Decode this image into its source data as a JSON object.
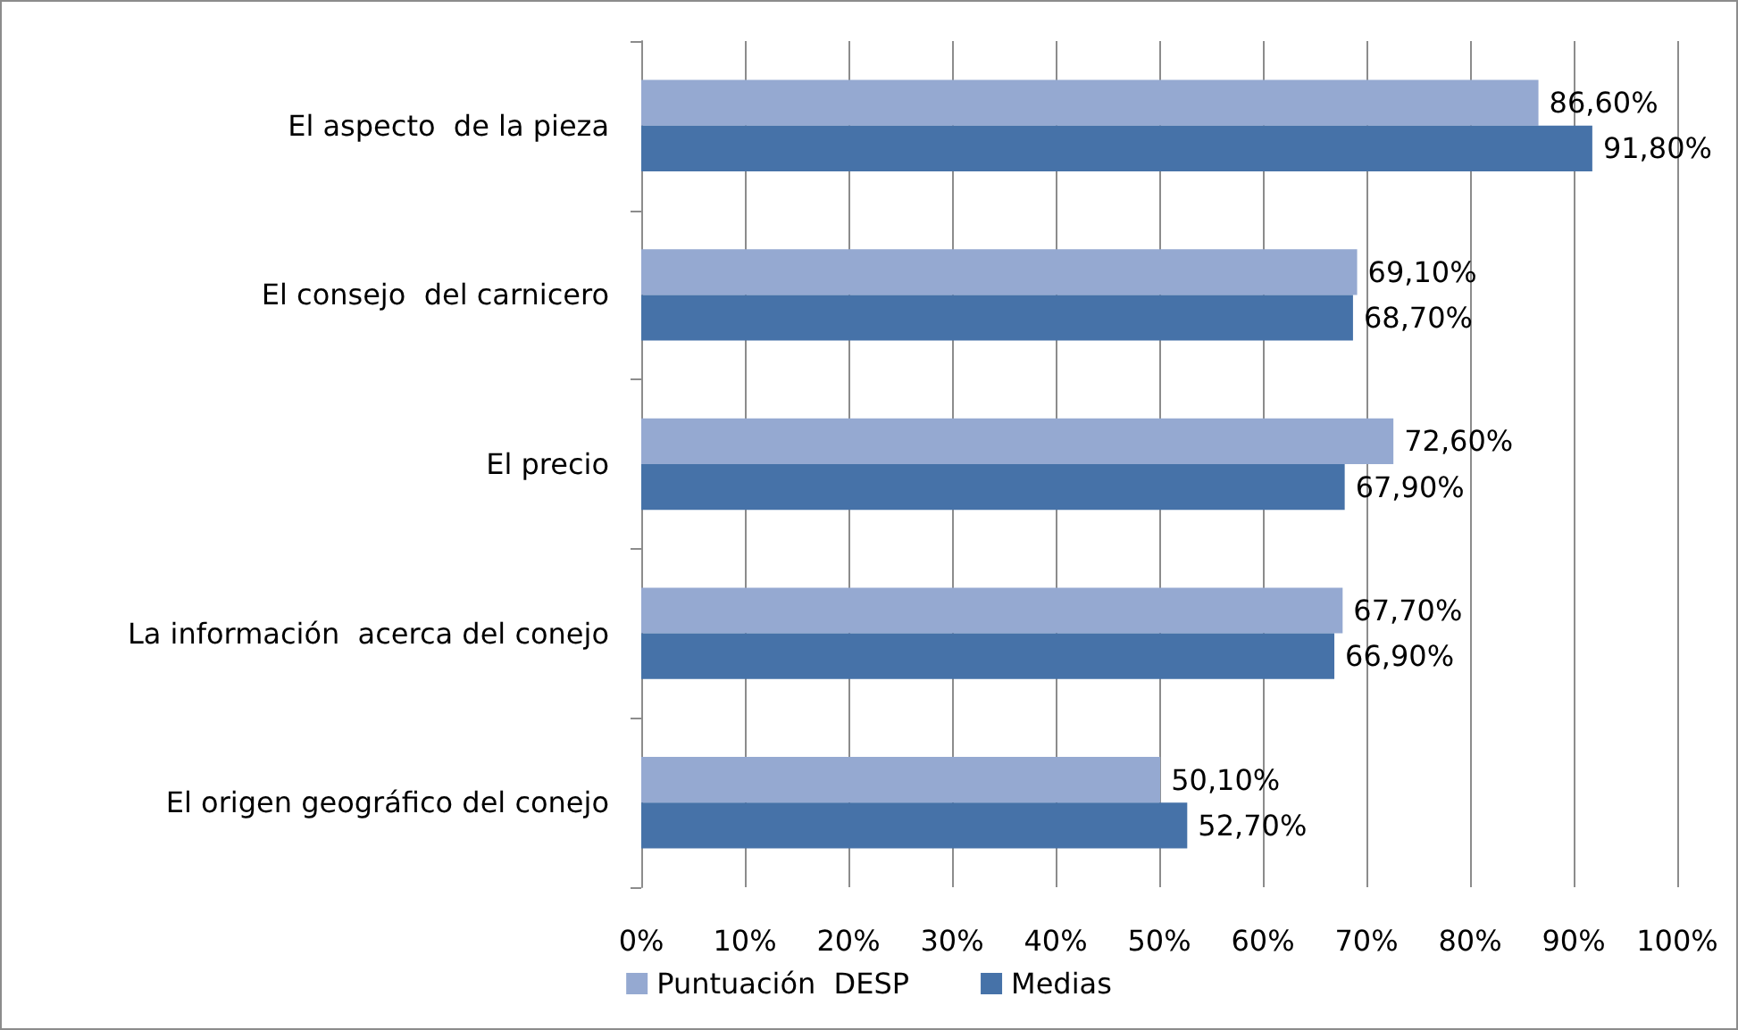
{
  "chart_data": {
    "type": "bar",
    "orientation": "horizontal",
    "categories": [
      "El aspecto  de la pieza",
      "El consejo  del carnicero",
      "El precio",
      "La información  acerca del conejo",
      "El origen geográfico del conejo"
    ],
    "series": [
      {
        "name": "Puntuación  DESP",
        "color": "#95a9d1",
        "values": [
          86.6,
          69.1,
          72.6,
          67.7,
          50.1
        ],
        "value_labels": [
          "86,60%",
          "69,10%",
          "72,60%",
          "67,70%",
          "50,10%"
        ]
      },
      {
        "name": "Medias",
        "color": "#4672a8",
        "values": [
          91.8,
          68.7,
          67.9,
          66.9,
          52.7
        ],
        "value_labels": [
          "91,80%",
          "68,70%",
          "67,90%",
          "66,90%",
          "52,70%"
        ]
      }
    ],
    "xlim": [
      0,
      100
    ],
    "xticks": [
      {
        "value": 0,
        "label": "0%"
      },
      {
        "value": 10,
        "label": "10%"
      },
      {
        "value": 20,
        "label": "20%"
      },
      {
        "value": 30,
        "label": "30%"
      },
      {
        "value": 40,
        "label": "40%"
      },
      {
        "value": 50,
        "label": "50%"
      },
      {
        "value": 60,
        "label": "60%"
      },
      {
        "value": 70,
        "label": "70%"
      },
      {
        "value": 80,
        "label": "80%"
      },
      {
        "value": 90,
        "label": "90%"
      },
      {
        "value": 100,
        "label": "100%"
      }
    ],
    "grid": "x",
    "legend": "bottom"
  }
}
